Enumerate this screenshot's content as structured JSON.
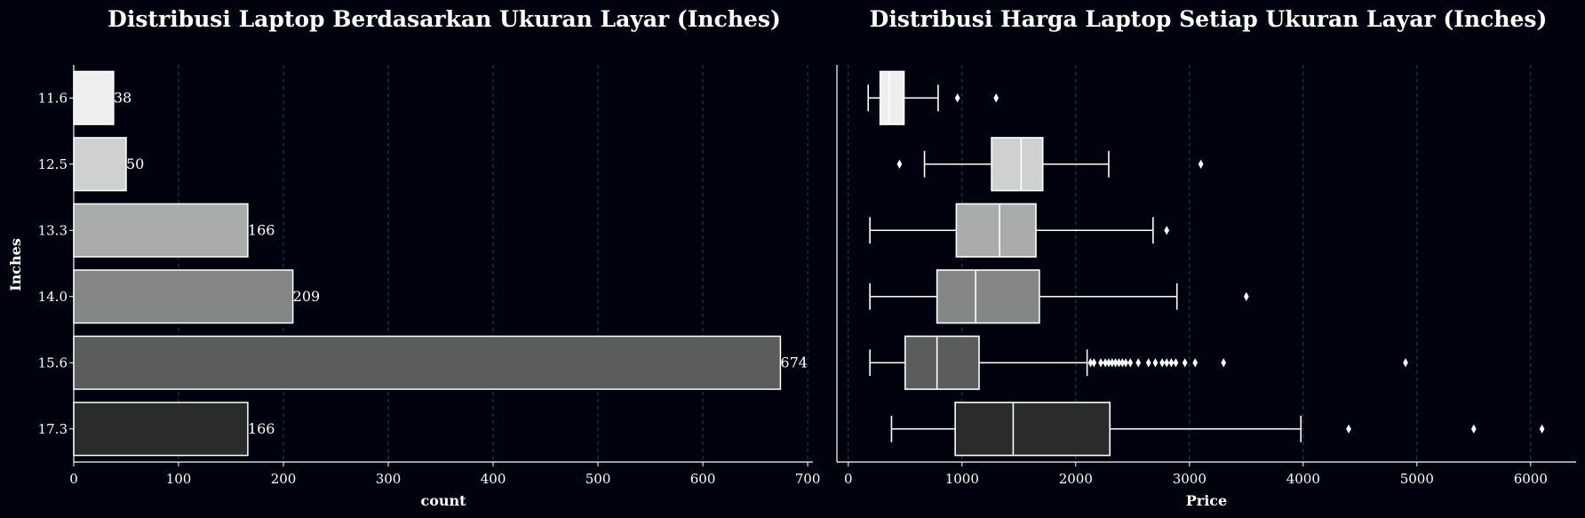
{
  "charts": [
    {
      "type": "bar",
      "orientation": "horizontal",
      "title": "Distribusi Laptop Berdasarkan Ukuran Layar (Inches)",
      "xlabel": "count",
      "ylabel": "Inches",
      "xlim": [
        0,
        705
      ],
      "xticks": [
        0,
        100,
        200,
        300,
        400,
        500,
        600,
        700
      ],
      "categories": [
        "11.6",
        "12.5",
        "13.3",
        "14.0",
        "15.6",
        "17.3"
      ],
      "values": [
        38,
        50,
        166,
        209,
        674,
        166
      ],
      "data_labels": [
        "38",
        "50",
        "166",
        "209",
        "674",
        "166"
      ],
      "colors": [
        "#eeeeee",
        "#d0d0d0",
        "#ababab",
        "#858585",
        "#5c5c5c",
        "#2b2b2b"
      ],
      "grid": "x-dashed"
    },
    {
      "type": "box",
      "orientation": "horizontal",
      "title": "Distribusi Harga Laptop Setiap Ukuran Layar (Inches)",
      "xlabel": "Price",
      "ylabel": "",
      "xlim": [
        -100,
        6400
      ],
      "xticks": [
        0,
        1000,
        2000,
        3000,
        4000,
        5000,
        6000
      ],
      "categories": [
        "11.6",
        "12.5",
        "13.3",
        "14.0",
        "15.6",
        "17.3"
      ],
      "colors": [
        "#eeeeee",
        "#d0d0d0",
        "#ababab",
        "#858585",
        "#5c5c5c",
        "#2b2b2b"
      ],
      "boxes": [
        {
          "whisker_low": 175,
          "q1": 280,
          "median": 360,
          "q3": 490,
          "whisker_high": 790,
          "outliers": [
            960,
            1300
          ]
        },
        {
          "whisker_low": 670,
          "q1": 1260,
          "median": 1520,
          "q3": 1710,
          "whisker_high": 2290,
          "outliers": [
            450,
            3100
          ]
        },
        {
          "whisker_low": 190,
          "q1": 950,
          "median": 1330,
          "q3": 1650,
          "whisker_high": 2680,
          "outliers": [
            2800
          ]
        },
        {
          "whisker_low": 190,
          "q1": 780,
          "median": 1120,
          "q3": 1680,
          "whisker_high": 2890,
          "outliers": [
            3500
          ]
        },
        {
          "whisker_low": 190,
          "q1": 500,
          "median": 780,
          "q3": 1150,
          "whisker_high": 2100,
          "outliers": [
            2130,
            2160,
            2220,
            2260,
            2290,
            2320,
            2350,
            2380,
            2410,
            2440,
            2480,
            2550,
            2640,
            2700,
            2760,
            2800,
            2840,
            2880,
            2960,
            3050,
            3300,
            4900
          ]
        },
        {
          "whisker_low": 380,
          "q1": 940,
          "median": 1450,
          "q3": 2300,
          "whisker_high": 3980,
          "outliers": [
            4400,
            5500,
            6100
          ]
        }
      ],
      "grid": "x-dashed"
    }
  ]
}
